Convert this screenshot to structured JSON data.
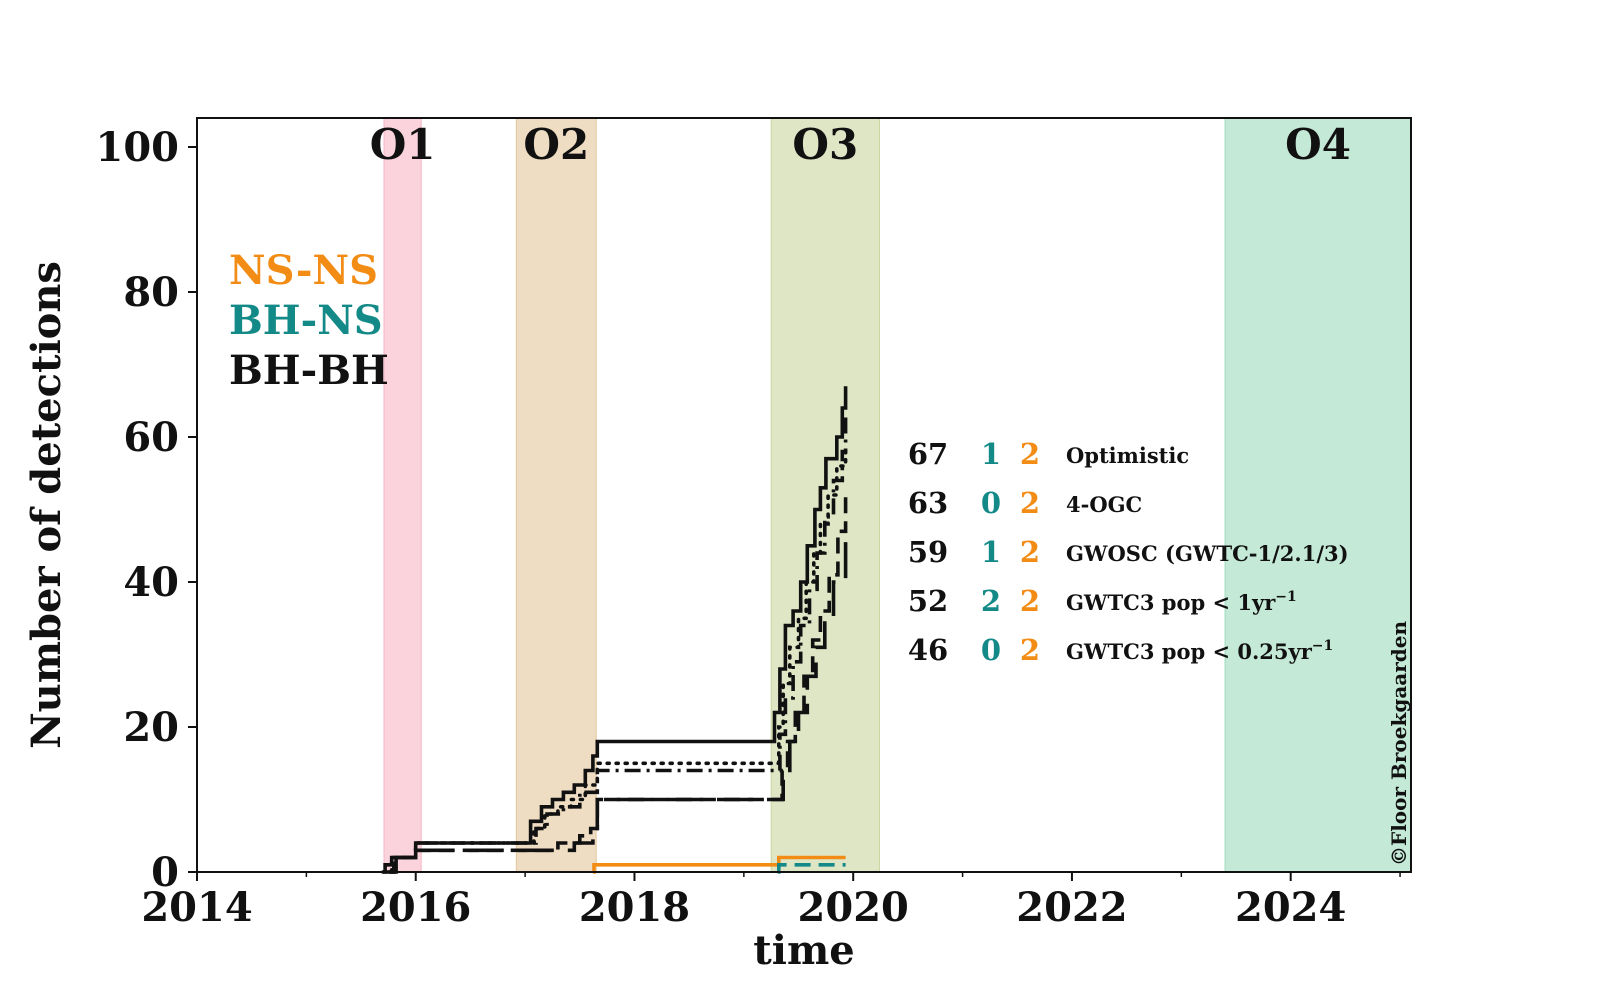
{
  "chart_data": {
    "type": "line",
    "xlabel": "time",
    "ylabel": "Number of detections",
    "xlim": [
      2014,
      2025.1
    ],
    "ylim": [
      0,
      104
    ],
    "xticks": [
      2014,
      2016,
      2018,
      2020,
      2022,
      2024
    ],
    "xtick_labels": [
      "2014",
      "2016",
      "2018",
      "2020",
      "2022",
      "2024"
    ],
    "yticks": [
      0,
      20,
      40,
      60,
      80,
      100
    ],
    "ytick_labels": [
      "0",
      "20",
      "40",
      "60",
      "80",
      "100"
    ],
    "grid": false,
    "observing_runs": [
      {
        "label": "O1",
        "start": 2015.71,
        "end": 2016.05,
        "color": "#f7b6c6"
      },
      {
        "label": "O2",
        "start": 2016.92,
        "end": 2017.65,
        "color": "#e3c79a"
      },
      {
        "label": "O3",
        "start": 2019.25,
        "end": 2020.24,
        "color": "#c9d6a0"
      },
      {
        "label": "O4",
        "start": 2023.4,
        "end": 2025.1,
        "color": "#9ddbbd"
      }
    ],
    "type_legend": [
      {
        "label": "NS-NS",
        "color": "#f28c14"
      },
      {
        "label": "BH-NS",
        "color": "#138a87"
      },
      {
        "label": "BH-BH",
        "color": "#111111"
      }
    ],
    "catalog_table": [
      {
        "bbh": "67",
        "bhns": "1",
        "nsns": "2",
        "label": "Optimistic",
        "sup": ""
      },
      {
        "bbh": "63",
        "bhns": "0",
        "nsns": "2",
        "label": "4-OGC",
        "sup": ""
      },
      {
        "bbh": "59",
        "bhns": "1",
        "nsns": "2",
        "label": "GWOSC (GWTC-1/2.1/3)",
        "sup": ""
      },
      {
        "bbh": "52",
        "bhns": "2",
        "nsns": "2",
        "label": "GWTC3 pop < 1yr",
        "sup": "−1"
      },
      {
        "bbh": "46",
        "bhns": "0",
        "nsns": "2",
        "label": "GWTC3 pop < 0.25yr",
        "sup": "−1"
      }
    ],
    "series": [
      {
        "category": "BH-BH",
        "style": "solid",
        "color": "#111111",
        "x": [
          2015.7,
          2015.72,
          2015.78,
          2016.0,
          2017.0,
          2017.05,
          2017.15,
          2017.25,
          2017.35,
          2017.45,
          2017.55,
          2017.62,
          2017.66,
          2019.25,
          2019.28,
          2019.33,
          2019.38,
          2019.45,
          2019.52,
          2019.58,
          2019.65,
          2019.7,
          2019.75,
          2019.85,
          2019.9,
          2019.93
        ],
        "y": [
          0,
          1,
          2,
          4,
          4,
          7,
          9,
          10,
          11,
          12,
          14,
          16,
          18,
          18,
          22,
          28,
          34,
          36,
          40,
          45,
          50,
          53,
          57,
          60,
          64,
          67
        ]
      },
      {
        "category": "BH-BH",
        "style": "dotted",
        "color": "#111111",
        "x": [
          2015.7,
          2015.78,
          2016.0,
          2017.0,
          2017.08,
          2017.18,
          2017.3,
          2017.42,
          2017.55,
          2017.66,
          2019.28,
          2019.32,
          2019.36,
          2019.42,
          2019.5,
          2019.57,
          2019.64,
          2019.7,
          2019.77,
          2019.85,
          2019.93
        ],
        "y": [
          0,
          2,
          4,
          4,
          6,
          8,
          9,
          10,
          12,
          15,
          15,
          20,
          26,
          31,
          35,
          40,
          44,
          48,
          52,
          56,
          59
        ]
      },
      {
        "category": "BH-BH",
        "style": "dashdot",
        "color": "#111111",
        "x": [
          2015.72,
          2015.8,
          2016.0,
          2017.0,
          2017.1,
          2017.2,
          2017.35,
          2017.5,
          2017.66,
          2019.28,
          2019.33,
          2019.38,
          2019.45,
          2019.52,
          2019.6,
          2019.67,
          2019.74,
          2019.82,
          2019.9,
          2019.93
        ],
        "y": [
          0,
          2,
          4,
          4,
          6,
          8,
          9,
          11,
          14,
          14,
          19,
          24,
          29,
          34,
          39,
          44,
          49,
          54,
          58,
          63
        ]
      },
      {
        "category": "BH-BH",
        "style": "dashed",
        "color": "#111111",
        "x": [
          2015.75,
          2015.8,
          2016.0,
          2017.0,
          2017.3,
          2017.5,
          2017.6,
          2017.66,
          2019.3,
          2019.35,
          2019.4,
          2019.47,
          2019.55,
          2019.63,
          2019.7,
          2019.78,
          2019.86,
          2019.93
        ],
        "y": [
          0,
          2,
          3,
          3,
          4,
          5,
          6,
          10,
          10,
          14,
          18,
          22,
          27,
          32,
          36,
          41,
          47,
          52
        ]
      },
      {
        "category": "BH-BH",
        "style": "longdash",
        "color": "#111111",
        "x": [
          2015.76,
          2015.82,
          2016.0,
          2017.0,
          2017.45,
          2017.62,
          2017.66,
          2019.3,
          2019.36,
          2019.42,
          2019.5,
          2019.58,
          2019.66,
          2019.74,
          2019.82,
          2019.93
        ],
        "y": [
          0,
          2,
          3,
          3,
          4,
          6,
          10,
          10,
          14,
          18,
          22,
          27,
          31,
          35,
          40,
          46
        ]
      },
      {
        "category": "NS-NS",
        "style": "solid",
        "color": "#f28c14",
        "x": [
          2017.62,
          2017.63,
          2019.31,
          2019.32,
          2019.93
        ],
        "y": [
          0,
          1,
          1,
          2,
          2
        ]
      },
      {
        "category": "BH-NS",
        "style": "dashed",
        "color": "#138a87",
        "x": [
          2019.31,
          2019.32,
          2019.62,
          2019.63,
          2019.93
        ],
        "y": [
          0,
          1,
          1,
          1,
          1
        ]
      }
    ]
  },
  "credit": "©Floor Broekgaarden"
}
